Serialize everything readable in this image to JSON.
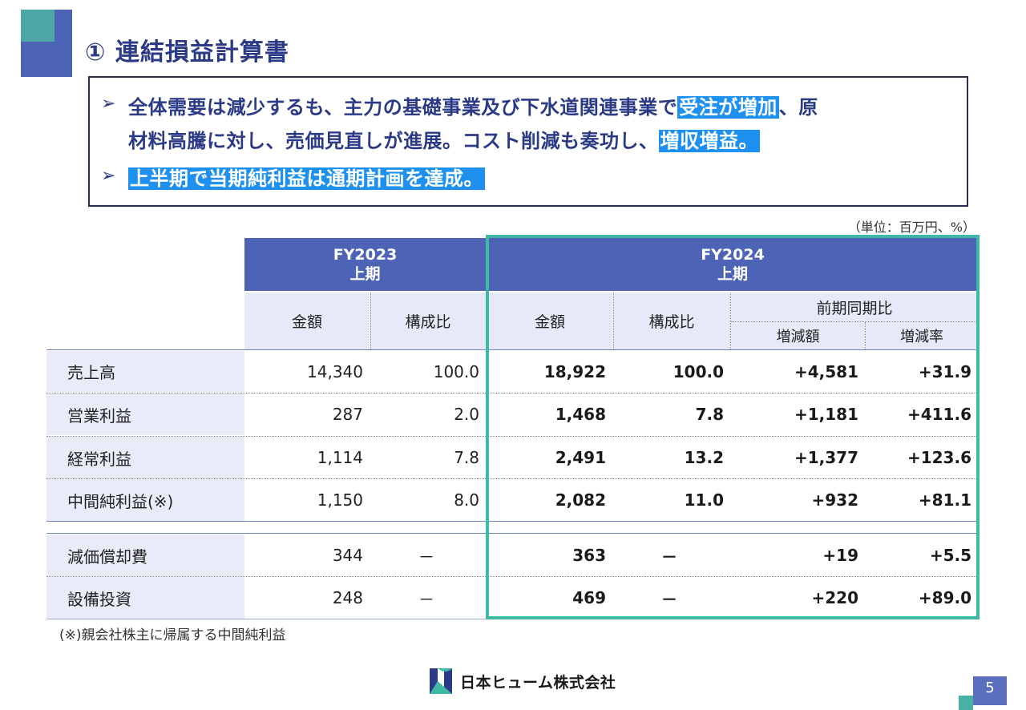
{
  "title": "① 連結損益計算書",
  "summary": {
    "bullet": "➢",
    "line1a": "全体需要は減少するも、主力の基礎事業及び下水道関連事業で",
    "line1hl": "受注が増加",
    "line1b": "、原",
    "line2a": "材料高騰に対し、売価見直しが進展。コスト削減も奏功し、",
    "line2hl": "増収増益。",
    "line3hl": "上半期で当期純利益は通期計画を達成。"
  },
  "unit_note": "（単位：百万円、%）",
  "table": {
    "fy2023_label": "FY2023",
    "fy2023_period": "上期",
    "fy2024_label": "FY2024",
    "fy2024_period": "上期",
    "col_amount": "金額",
    "col_ratio": "構成比",
    "col_yoy": "前期同期比",
    "col_change": "増減額",
    "col_rate": "増減率",
    "rows": [
      {
        "label": "売上高",
        "a23": "14,340",
        "r23": "100.0",
        "a24": "18,922",
        "r24": "100.0",
        "chg": "+4,581",
        "rate": "+31.9"
      },
      {
        "label": "営業利益",
        "a23": "287",
        "r23": "2.0",
        "a24": "1,468",
        "r24": "7.8",
        "chg": "+1,181",
        "rate": "+411.6"
      },
      {
        "label": "経常利益",
        "a23": "1,114",
        "r23": "7.8",
        "a24": "2,491",
        "r24": "13.2",
        "chg": "+1,377",
        "rate": "+123.6"
      },
      {
        "label": "中間純利益(※)",
        "a23": "1,150",
        "r23": "8.0",
        "a24": "2,082",
        "r24": "11.0",
        "chg": "+932",
        "rate": "+81.1"
      },
      {
        "label": "減価償却費",
        "a23": "344",
        "r23": "－",
        "a24": "363",
        "r24": "－",
        "chg": "+19",
        "rate": "+5.5"
      },
      {
        "label": "設備投資",
        "a23": "248",
        "r23": "－",
        "a24": "469",
        "r24": "－",
        "chg": "+220",
        "rate": "+89.0"
      }
    ]
  },
  "footnote": "(※)親会社株主に帰属する中間純利益",
  "company": "日本ヒューム株式会社",
  "page_number": "5",
  "colors": {
    "brand_blue": "#4d63b5",
    "teal": "#3fb8a5",
    "highlight": "#1e90f0"
  }
}
